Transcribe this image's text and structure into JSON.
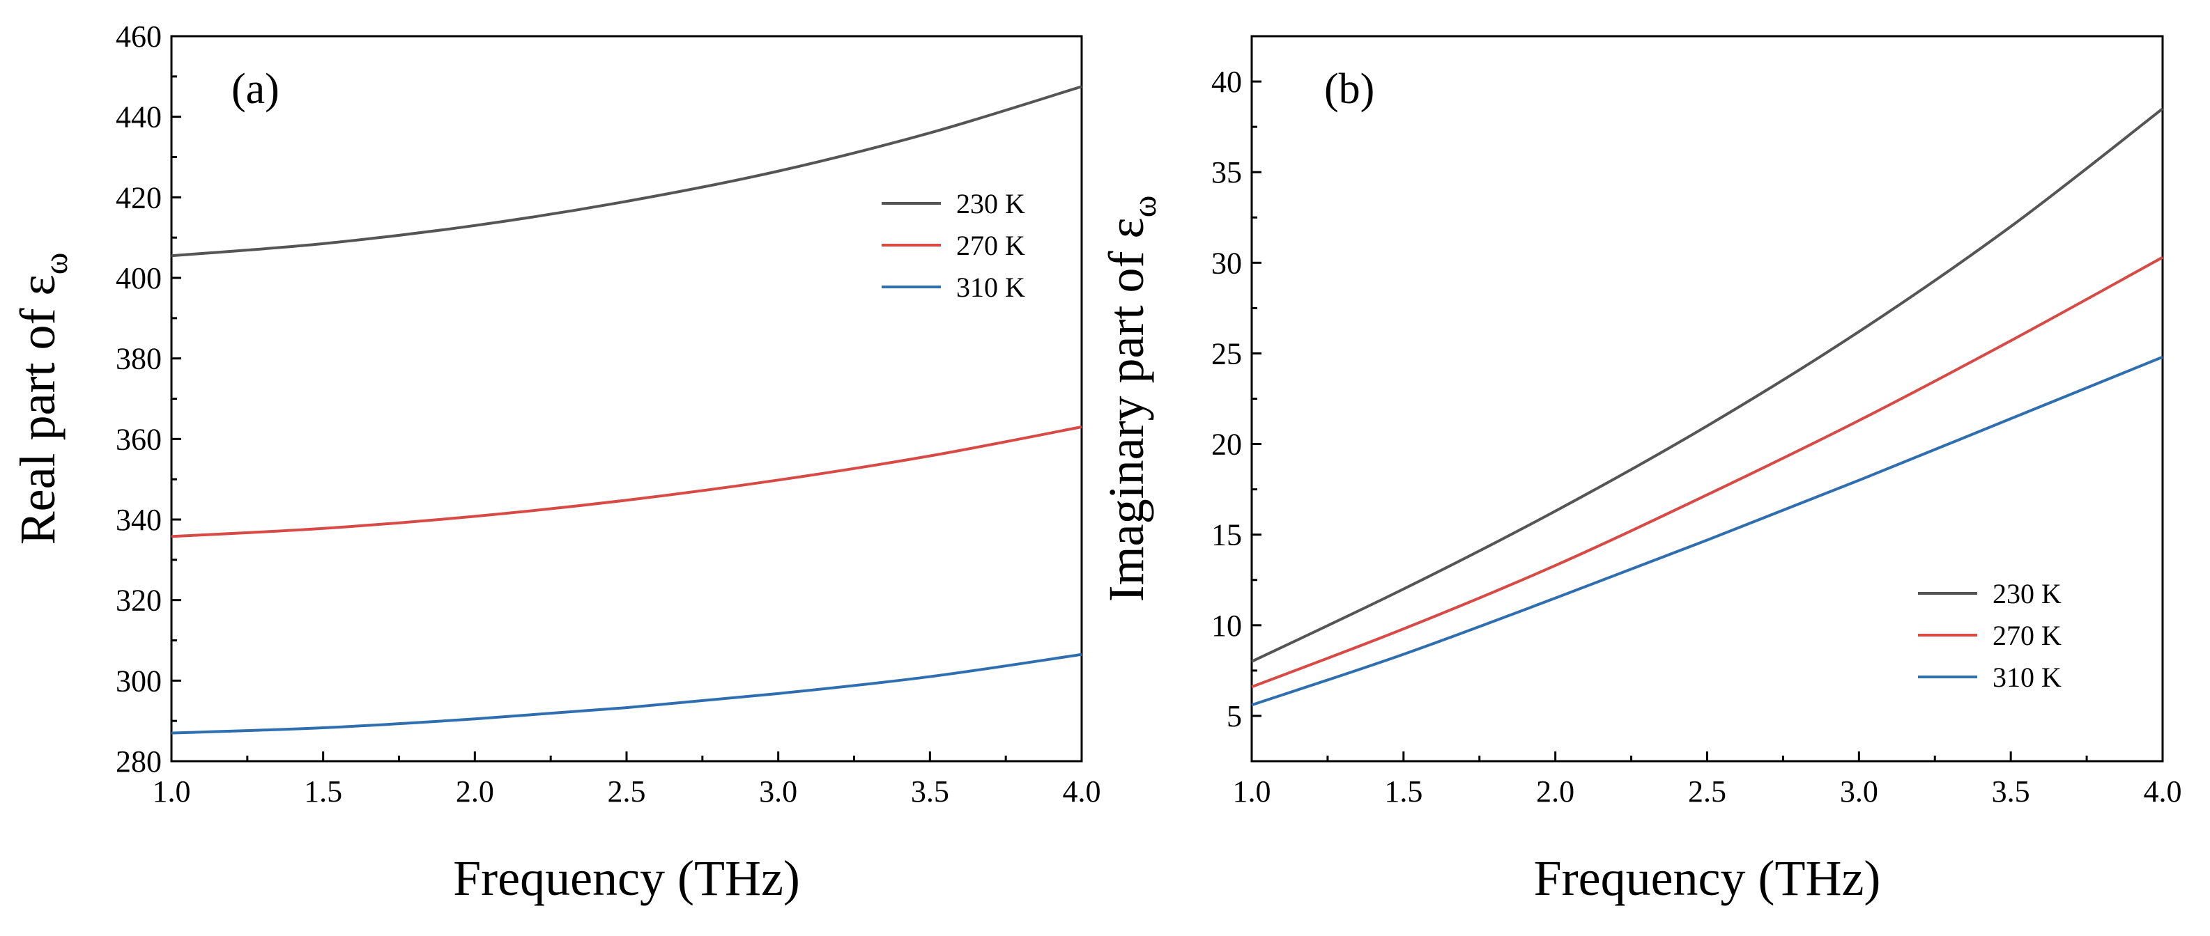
{
  "chart_data": [
    {
      "type": "line",
      "panel_label": "(a)",
      "xlabel": "Frequency (THz)",
      "ylabel": "Real part of ε",
      "ylabel_subscript": "ω",
      "xlim": [
        1.0,
        4.0
      ],
      "ylim": [
        280,
        460
      ],
      "xticks": [
        1.0,
        1.5,
        2.0,
        2.5,
        3.0,
        3.5,
        4.0
      ],
      "xtick_labels": [
        "1.0",
        "1.5",
        "2.0",
        "2.5",
        "3.0",
        "3.5",
        "4.0"
      ],
      "yticks": [
        280,
        300,
        320,
        340,
        360,
        380,
        400,
        420,
        440,
        460
      ],
      "ytick_labels": [
        "280",
        "300",
        "320",
        "340",
        "360",
        "380",
        "400",
        "420",
        "440",
        "460"
      ],
      "legend_position": "upper-right",
      "x": [
        1.0,
        1.5,
        2.0,
        2.5,
        3.0,
        3.5,
        4.0
      ],
      "series": [
        {
          "name": "230 K",
          "color": "#555555",
          "values": [
            405.5,
            408.5,
            413.0,
            419.0,
            426.5,
            436.0,
            447.5
          ]
        },
        {
          "name": "270 K",
          "color": "#d84a45",
          "values": [
            335.8,
            337.8,
            340.8,
            344.8,
            349.8,
            355.8,
            363.0
          ]
        },
        {
          "name": "310 K",
          "color": "#2f6fb0",
          "values": [
            287.0,
            288.3,
            290.5,
            293.3,
            296.8,
            301.0,
            306.5
          ]
        }
      ]
    },
    {
      "type": "line",
      "panel_label": "(b)",
      "xlabel": "Frequency (THz)",
      "ylabel": "Imaginary part of ε",
      "ylabel_subscript": "ω",
      "xlim": [
        1.0,
        4.0
      ],
      "ylim": [
        2.5,
        42.5
      ],
      "xticks": [
        1.0,
        1.5,
        2.0,
        2.5,
        3.0,
        3.5,
        4.0
      ],
      "xtick_labels": [
        "1.0",
        "1.5",
        "2.0",
        "2.5",
        "3.0",
        "3.5",
        "4.0"
      ],
      "yticks": [
        5,
        10,
        15,
        20,
        25,
        30,
        35,
        40
      ],
      "ytick_labels": [
        "5",
        "10",
        "15",
        "20",
        "25",
        "30",
        "35",
        "40"
      ],
      "legend_position": "lower-right",
      "x": [
        1.0,
        1.5,
        2.0,
        2.5,
        3.0,
        3.5,
        4.0
      ],
      "series": [
        {
          "name": "230 K",
          "color": "#555555",
          "values": [
            8.0,
            12.0,
            16.3,
            21.0,
            26.2,
            32.0,
            38.5
          ]
        },
        {
          "name": "270 K",
          "color": "#d84a45",
          "values": [
            6.6,
            9.8,
            13.3,
            17.2,
            21.3,
            25.7,
            30.3
          ]
        },
        {
          "name": "310 K",
          "color": "#2f6fb0",
          "values": [
            5.6,
            8.4,
            11.5,
            14.7,
            18.0,
            21.4,
            24.8
          ]
        }
      ]
    }
  ]
}
